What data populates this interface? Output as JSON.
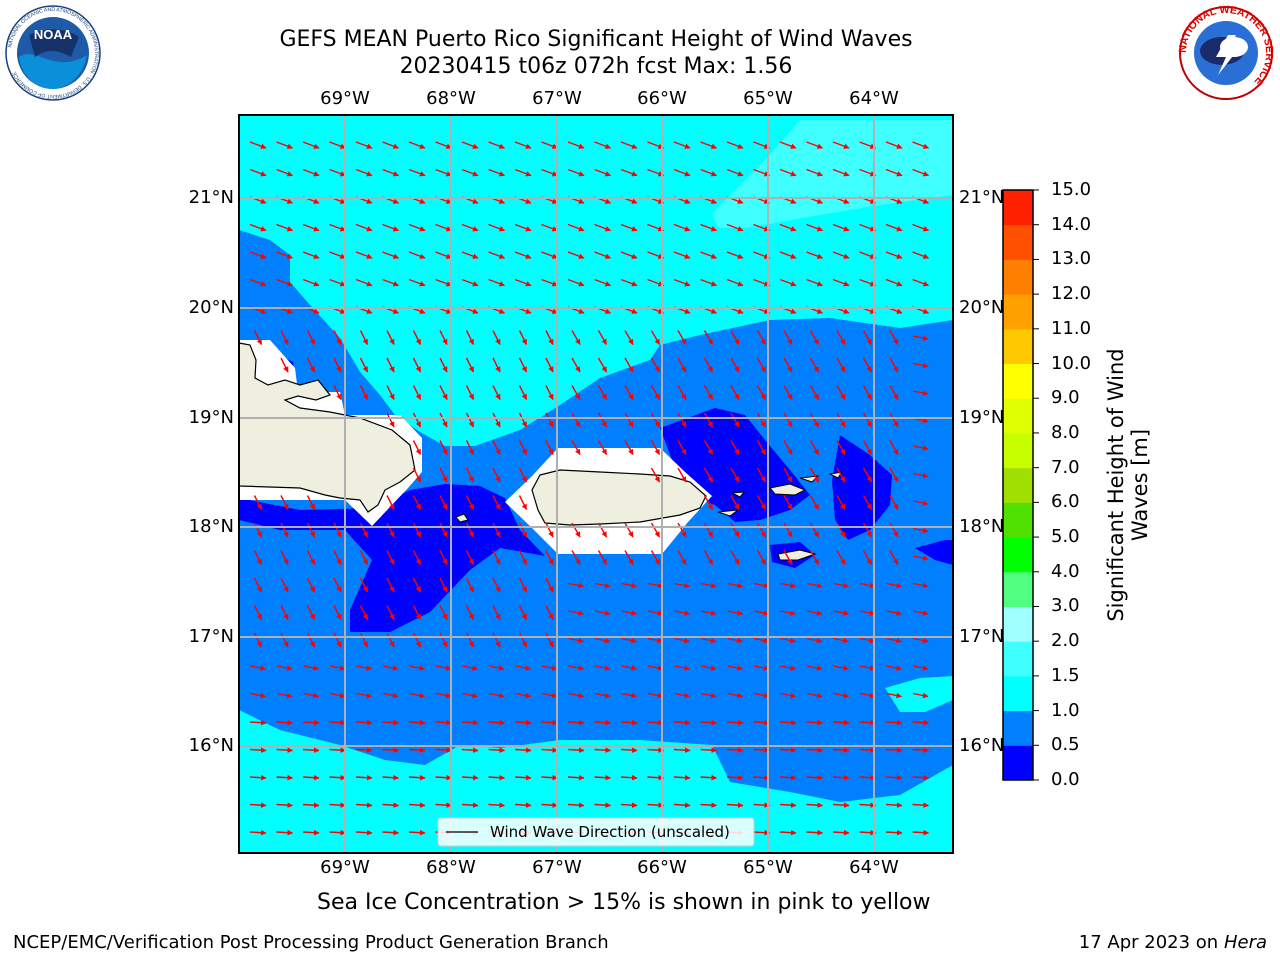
{
  "header": {
    "title_line1": "GEFS MEAN Puerto Rico Significant Height of Wind Waves",
    "title_line2": "20230415 t06z 072h fcst   Max: 1.56"
  },
  "logos": {
    "noaa_text": "NOAA",
    "noaa_ring_text": "NATIONAL OCEANIC AND ATMOSPHERIC ADMINISTRATION · U.S. DEPARTMENT OF COMMERCE",
    "nws_ring_text": "NATIONAL WEATHER SERVICE"
  },
  "map": {
    "lon_ticks": [
      "69°W",
      "68°W",
      "67°W",
      "66°W",
      "65°W",
      "64°W"
    ],
    "lat_ticks": [
      "21°N",
      "20°N",
      "19°N",
      "18°N",
      "17°N",
      "16°N"
    ],
    "legend_label": "Wind Wave Direction (unscaled)",
    "vector_color": "#ff0000",
    "land_color": "#efefdf",
    "border_color": "#000000"
  },
  "colorbar": {
    "title": "Significant Height of Wind Waves [m]",
    "levels": [
      "0.0",
      "0.5",
      "1.0",
      "1.5",
      "2.0",
      "3.0",
      "4.0",
      "5.0",
      "6.0",
      "7.0",
      "8.0",
      "9.0",
      "10.0",
      "11.0",
      "12.0",
      "13.0",
      "14.0",
      "15.0"
    ],
    "colors": [
      "#0000ff",
      "#0080ff",
      "#00ffff",
      "#40ffff",
      "#a0ffff",
      "#50ff80",
      "#00ff00",
      "#50e000",
      "#a0e000",
      "#c8ff00",
      "#e0ff00",
      "#ffff00",
      "#ffc800",
      "#ffa000",
      "#ff8000",
      "#ff5000",
      "#ff2000"
    ]
  },
  "note": "Sea Ice Concentration > 15% is shown in pink to yellow",
  "footer": {
    "left": "NCEP/EMC/Verification Post Processing Product Generation Branch",
    "right_date": "17 Apr 2023 on ",
    "right_host": "Hera"
  }
}
